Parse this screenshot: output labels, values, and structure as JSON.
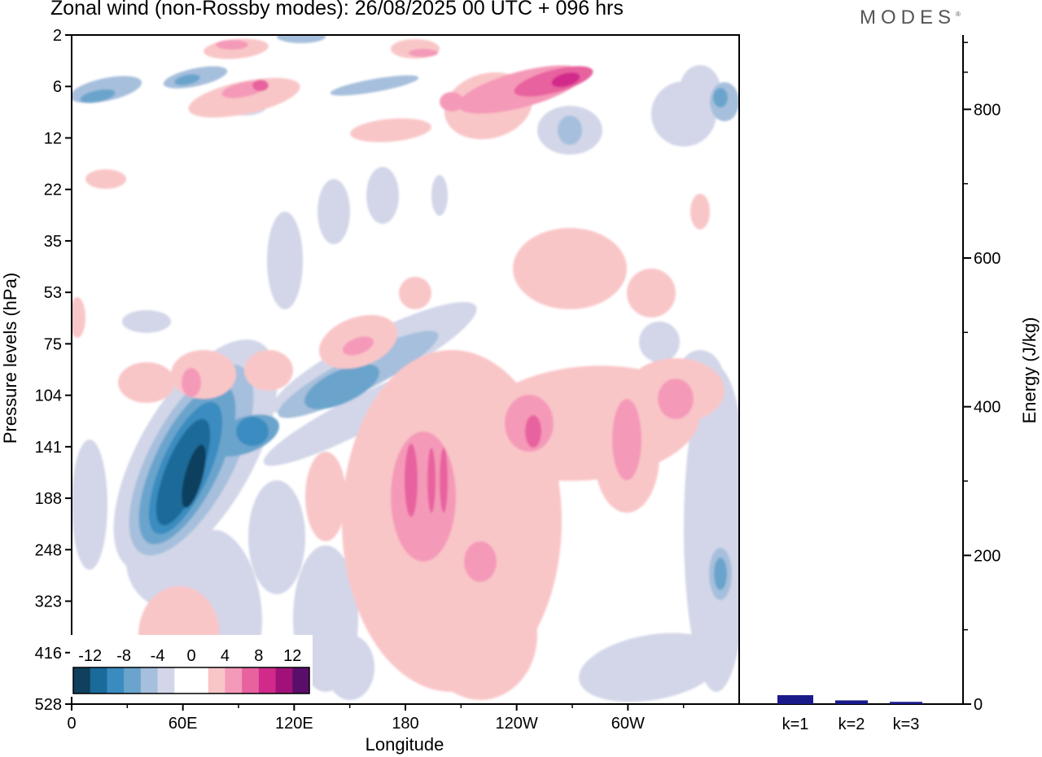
{
  "header": {
    "title": "Zonal wind (non-Rossby modes):  26/08/2025  00 UTC  + 096 hrs",
    "brand": "MODES",
    "brand_mark": "®"
  },
  "chart_data": [
    {
      "type": "heatmap",
      "title": "Zonal wind (non-Rossby modes):  26/08/2025  00 UTC  + 096 hrs",
      "xlabel": "Longitude",
      "ylabel": "Pressure levels (hPa)",
      "x_ticks": [
        "0",
        "60E",
        "120E",
        "180",
        "120W",
        "60W"
      ],
      "x_tick_degrees": [
        0,
        60,
        120,
        180,
        240,
        300
      ],
      "xlim": [
        0,
        360
      ],
      "y_ticks": [
        "2",
        "6",
        "12",
        "22",
        "35",
        "53",
        "75",
        "104",
        "141",
        "188",
        "248",
        "323",
        "416",
        "528"
      ],
      "colorbar": {
        "labels": [
          "-12",
          "-8",
          "-4",
          "0",
          "4",
          "8",
          "12"
        ],
        "levels": [
          -14,
          -12,
          -10,
          -8,
          -6,
          -4,
          -2,
          0,
          2,
          4,
          6,
          8,
          10,
          12,
          14
        ],
        "colors": [
          "#10405e",
          "#1a6a9a",
          "#3a8cc0",
          "#6aa4cc",
          "#a6bfdc",
          "#d2d6e8",
          "#ffffff",
          "#ffffff",
          "#f9c6c8",
          "#f49ab8",
          "#e8629f",
          "#d22a8a",
          "#a0127a",
          "#5a0e6a"
        ]
      },
      "features": [
        {
          "name": "strong westward jet core",
          "lon": 65,
          "level_hPa": 165,
          "value": -14
        },
        {
          "name": "eastward upper-level maximum",
          "lon": 265,
          "level_hPa": 6,
          "value": 10
        },
        {
          "name": "eastward tropospheric region",
          "lon": 195,
          "level_hPa": 180,
          "value": 6
        }
      ]
    },
    {
      "type": "bar",
      "categories": [
        "k=1",
        "k=2",
        "k=3"
      ],
      "values": [
        12,
        5,
        3
      ],
      "ylabel": "Energy (J/kg)",
      "ylim": [
        0,
        900
      ],
      "y_ticks": [
        "0",
        "200",
        "400",
        "600",
        "800"
      ],
      "y_tick_values": [
        0,
        200,
        400,
        600,
        800
      ],
      "bar_color": "#1a1a8a"
    }
  ]
}
